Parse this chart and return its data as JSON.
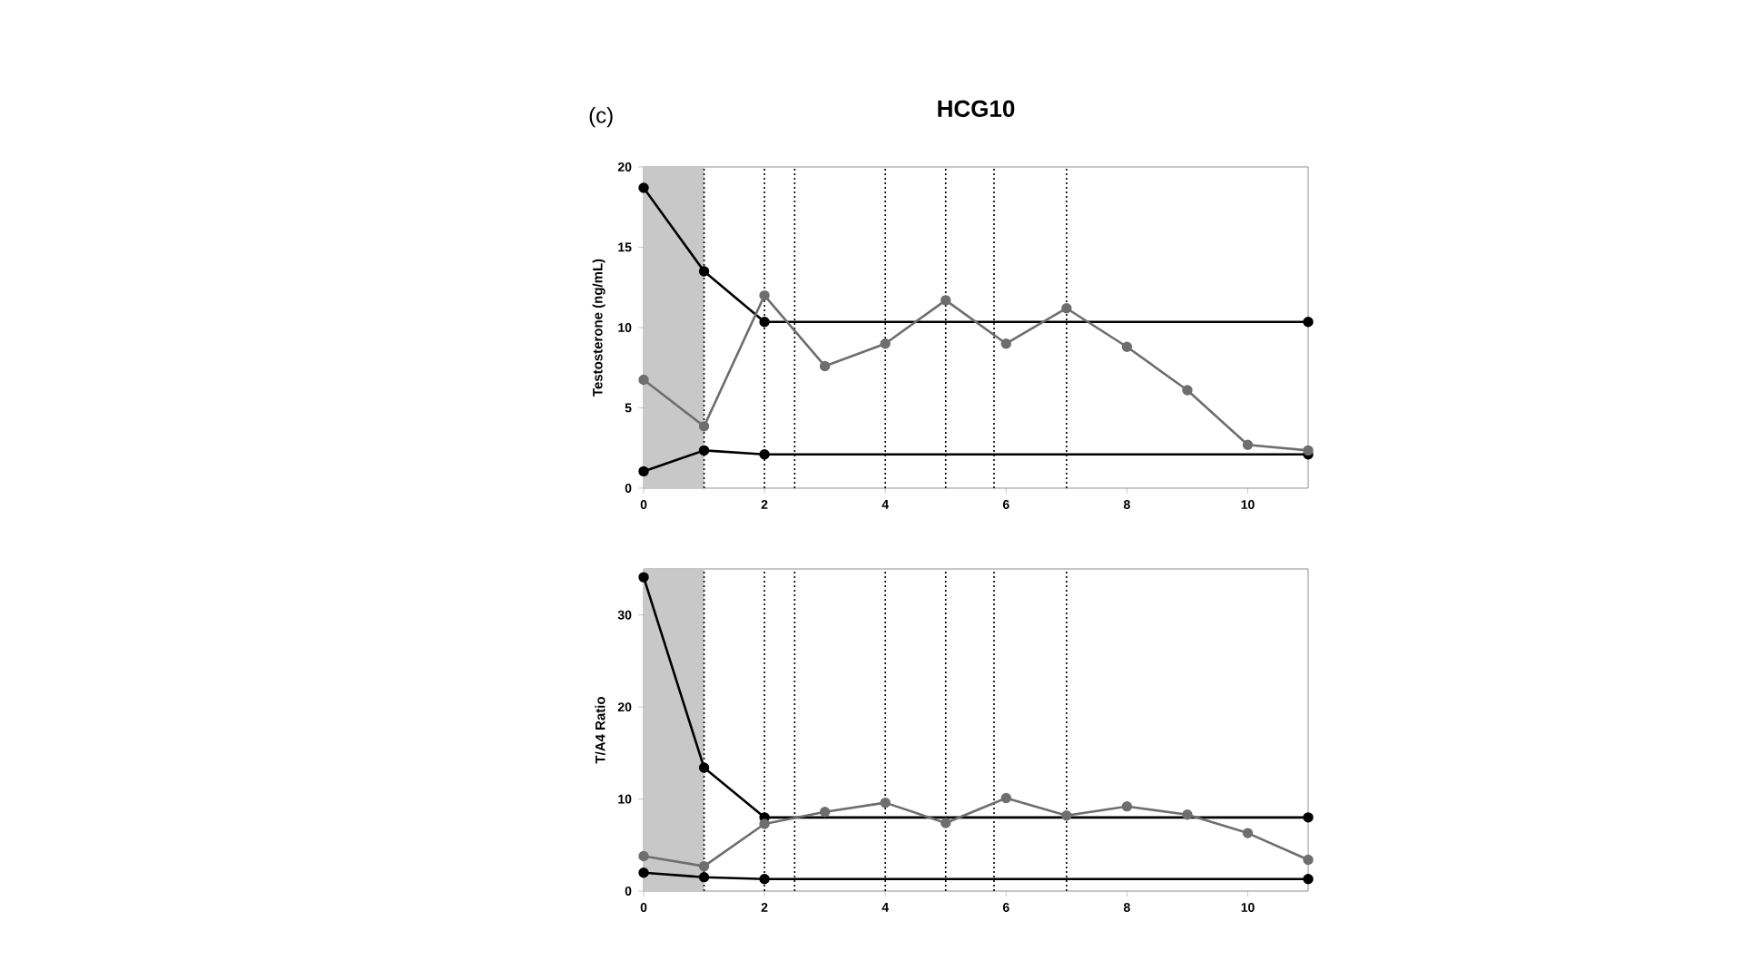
{
  "chart_data": [
    {
      "type": "line",
      "title": "HCG10",
      "ylabel": "Testosterone (ng/mL)",
      "annotations": [
        "(c)"
      ],
      "x": [
        0,
        1,
        2,
        3,
        4,
        5,
        6,
        7,
        8,
        9,
        10,
        11
      ],
      "xlim": [
        0,
        11
      ],
      "xticks": [
        0,
        2,
        4,
        6,
        8,
        10
      ],
      "ylim": [
        0,
        20
      ],
      "yticks": [
        0,
        5,
        10,
        15,
        20
      ],
      "grid": false,
      "marker": "circle",
      "line_style": "solid",
      "bands": [
        {
          "axis": "x",
          "from": 0,
          "to": 1,
          "color": "#c8c8c8"
        }
      ],
      "ref_lines": [
        {
          "axis": "x",
          "value": 1,
          "line_style": "dotted"
        },
        {
          "axis": "x",
          "value": 2,
          "line_style": "dotted"
        },
        {
          "axis": "x",
          "value": 2.5,
          "line_style": "dotted"
        },
        {
          "axis": "x",
          "value": 4,
          "line_style": "dotted"
        },
        {
          "axis": "x",
          "value": 5,
          "line_style": "dotted"
        },
        {
          "axis": "x",
          "value": 5.8,
          "line_style": "dotted"
        },
        {
          "axis": "x",
          "value": 7,
          "line_style": "dotted"
        }
      ],
      "series": [
        {
          "color": "#000000",
          "x": [
            0,
            1,
            2,
            11
          ],
          "values": [
            18.7,
            13.5,
            10.35,
            10.35
          ]
        },
        {
          "color": "#000000",
          "x": [
            0,
            1,
            2,
            11
          ],
          "values": [
            1.05,
            2.35,
            2.1,
            2.1
          ]
        },
        {
          "color": "#6e6e6e",
          "values": [
            6.75,
            3.85,
            12.0,
            7.6,
            9.0,
            11.7,
            9.0,
            11.2,
            8.8,
            6.1,
            2.7,
            2.35
          ]
        }
      ]
    },
    {
      "type": "line",
      "ylabel": "T/A4 Ratio",
      "x": [
        0,
        1,
        2,
        3,
        4,
        5,
        6,
        7,
        8,
        9,
        10,
        11
      ],
      "xlim": [
        0,
        11
      ],
      "xticks": [
        0,
        2,
        4,
        6,
        8,
        10
      ],
      "ylim": [
        0,
        35
      ],
      "yticks": [
        0,
        10,
        20,
        30
      ],
      "grid": false,
      "marker": "circle",
      "line_style": "solid",
      "bands": [
        {
          "axis": "x",
          "from": 0,
          "to": 1,
          "color": "#c8c8c8"
        }
      ],
      "ref_lines": [
        {
          "axis": "x",
          "value": 1,
          "line_style": "dotted"
        },
        {
          "axis": "x",
          "value": 2,
          "line_style": "dotted"
        },
        {
          "axis": "x",
          "value": 2.5,
          "line_style": "dotted"
        },
        {
          "axis": "x",
          "value": 4,
          "line_style": "dotted"
        },
        {
          "axis": "x",
          "value": 5,
          "line_style": "dotted"
        },
        {
          "axis": "x",
          "value": 5.8,
          "line_style": "dotted"
        },
        {
          "axis": "x",
          "value": 7,
          "line_style": "dotted"
        }
      ],
      "series": [
        {
          "color": "#000000",
          "x": [
            0,
            1,
            2,
            11
          ],
          "values": [
            34.1,
            13.4,
            8.0,
            8.0
          ]
        },
        {
          "color": "#000000",
          "x": [
            0,
            1,
            2,
            11
          ],
          "values": [
            2.0,
            1.5,
            1.3,
            1.3
          ]
        },
        {
          "color": "#6e6e6e",
          "values": [
            3.8,
            2.7,
            7.3,
            8.6,
            9.6,
            7.4,
            10.1,
            8.2,
            9.2,
            8.3,
            6.3,
            3.4
          ]
        }
      ]
    }
  ]
}
